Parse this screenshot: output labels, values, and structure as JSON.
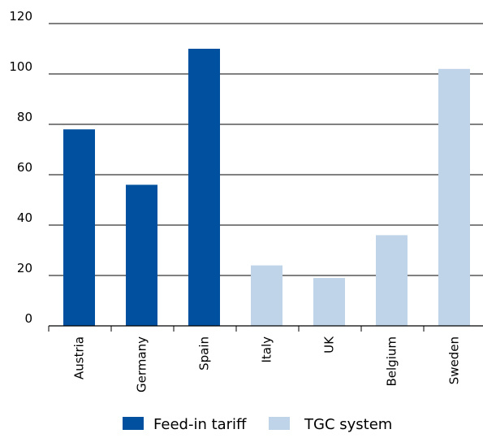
{
  "chart_data": {
    "type": "bar",
    "title": "",
    "xlabel": "",
    "ylabel": "",
    "ylim": [
      0,
      120
    ],
    "yticks": [
      0,
      20,
      40,
      60,
      80,
      100,
      120
    ],
    "grid": true,
    "legend_position": "bottom",
    "categories": [
      "Austria",
      "Germany",
      "Spain",
      "Italy",
      "UK",
      "Belgium",
      "Sweden"
    ],
    "series": [
      {
        "name": "Feed-in tariff",
        "color": "#0050a0",
        "values": [
          78,
          56,
          110,
          null,
          null,
          null,
          null
        ]
      },
      {
        "name": "TGC system",
        "color": "#bfd4e8",
        "values": [
          null,
          null,
          null,
          24,
          19,
          36,
          102
        ]
      }
    ]
  }
}
